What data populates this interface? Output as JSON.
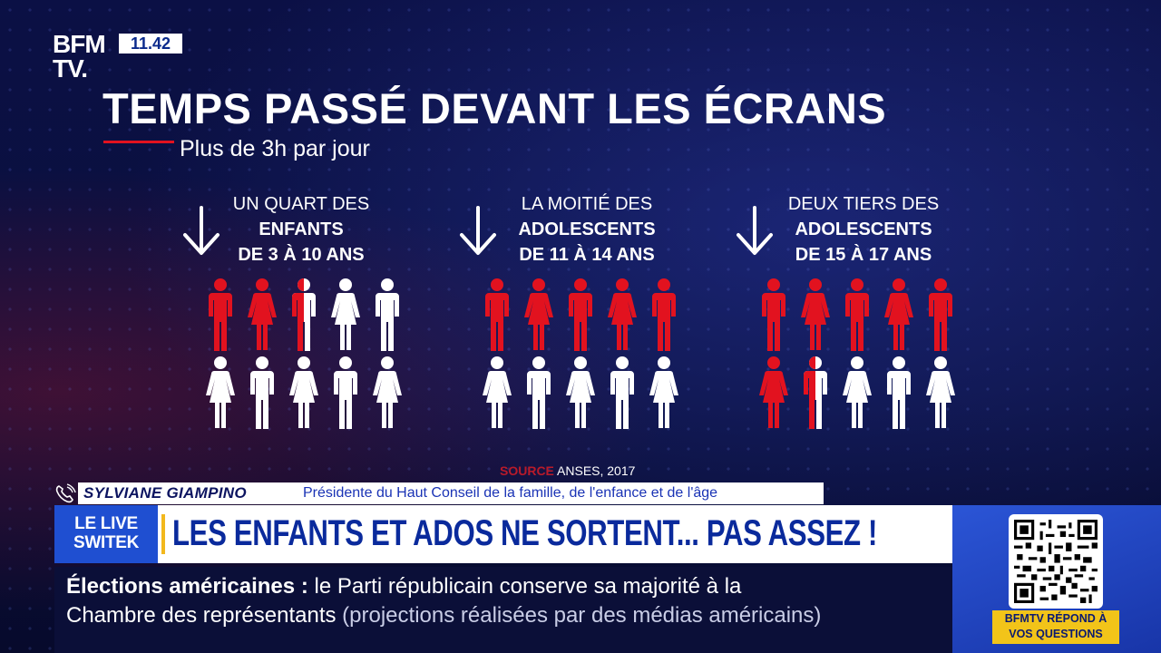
{
  "broadcast": {
    "logo": {
      "line1": "BFM",
      "line2": "TV."
    },
    "clock": "11.42"
  },
  "infographic": {
    "title": "TEMPS PASSÉ DEVANT LES ÉCRANS",
    "subtitle": "Plus de 3h par jour",
    "source_label": "SOURCE",
    "source_value": "ANSES, 2017",
    "colors": {
      "highlight": "#e2121f",
      "neutral": "#ffffff"
    },
    "groups": [
      {
        "line1": "UN QUART DES",
        "line2": "ENFANTS",
        "line3": "DE 3 À 10 ANS",
        "highlighted": 2.5,
        "total": 10,
        "icon": "arrow-down-icon"
      },
      {
        "line1": "LA MOITIÉ DES",
        "line2": "ADOLESCENTS",
        "line3": "DE 11 À 14 ANS",
        "highlighted": 5,
        "total": 10,
        "icon": "arrow-down-icon"
      },
      {
        "line1": "DEUX TIERS DES",
        "line2": "ADOLESCENTS",
        "line3": "DE 15 À 17 ANS",
        "highlighted": 6.5,
        "total": 10,
        "icon": "arrow-down-icon"
      }
    ]
  },
  "lower_third": {
    "speaker_name": "SYLVIANE GIAMPINO",
    "speaker_role": "Présidente du Haut Conseil de la famille, de l'enfance et de l'âge",
    "live_tag_line1": "LE LIVE",
    "live_tag_line2": "SWITEK",
    "headline": "LES ENFANTS ET ADOS NE SORTENT... PAS ASSEZ !"
  },
  "ticker": {
    "topic": "Élections américaines",
    "separator": ":",
    "line1_text": "le Parti républicain conserve sa majorité à la",
    "line2_text": "Chambre des représentants",
    "line2_aside": "(projections réalisées par des médias américains)"
  },
  "qr_panel": {
    "caption_line1": "BFMTV RÉPOND À",
    "caption_line2": "VOS QUESTIONS"
  }
}
